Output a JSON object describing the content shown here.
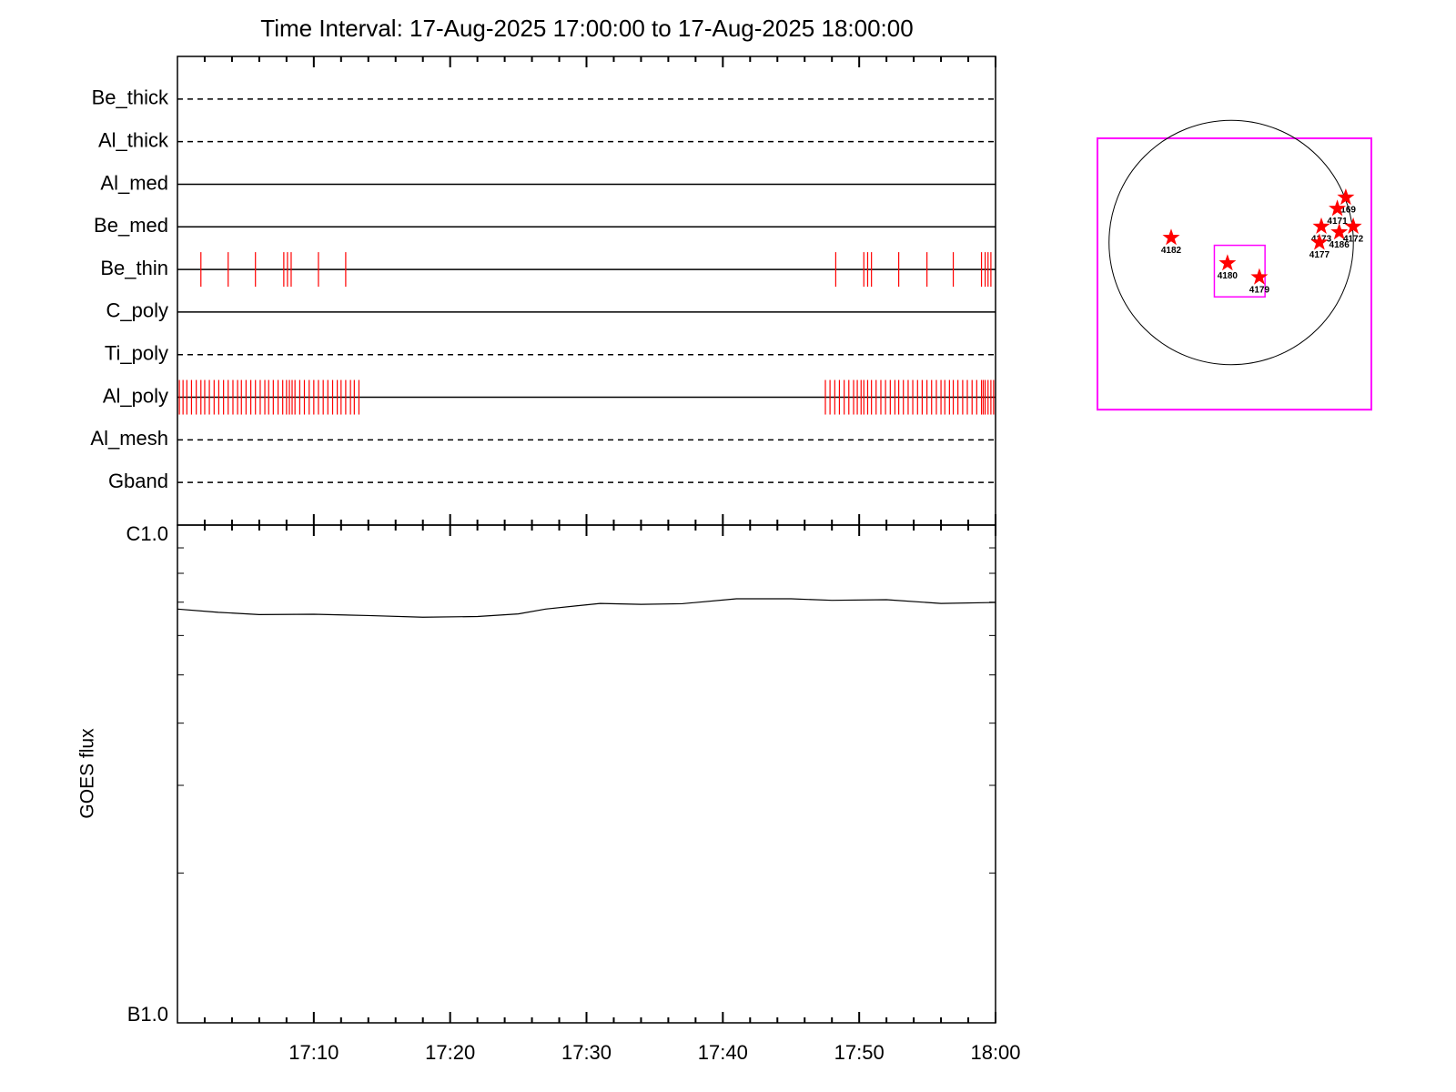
{
  "chart_data": [
    {
      "type": "events",
      "title": "Time Interval: 17-Aug-2025 17:00:00 to 17-Aug-2025 18:00:00",
      "xlim": [
        0,
        60
      ],
      "xticks": [
        10,
        20,
        30,
        40,
        50,
        60
      ],
      "xminorticks": [
        2,
        4,
        6,
        8,
        12,
        14,
        16,
        18,
        22,
        24,
        26,
        28,
        32,
        34,
        36,
        38,
        42,
        44,
        46,
        48,
        52,
        54,
        56,
        58
      ],
      "color": "#ff0000",
      "rows": [
        {
          "name": "Be_thick",
          "line": "dashed",
          "events": []
        },
        {
          "name": "Al_thick",
          "line": "dashed",
          "events": []
        },
        {
          "name": "Al_med",
          "line": "solid",
          "events": []
        },
        {
          "name": "Be_med",
          "line": "solid",
          "events": []
        },
        {
          "name": "Be_thin",
          "line": "solid",
          "events": [
            1.72,
            3.72,
            5.72,
            7.8,
            8.07,
            8.34,
            10.34,
            12.34,
            48.28,
            50.34,
            50.62,
            50.9,
            52.9,
            54.97,
            56.9,
            58.97,
            59.24,
            59.45,
            59.66
          ]
        },
        {
          "name": "C_poly",
          "line": "solid",
          "events": []
        },
        {
          "name": "Ti_poly",
          "line": "dashed",
          "events": []
        },
        {
          "name": "Al_poly",
          "line": "solid",
          "events": [
            0.14,
            0.41,
            0.69,
            1.03,
            1.38,
            1.72,
            2.0,
            2.34,
            2.69,
            3.03,
            3.38,
            3.72,
            4.07,
            4.41,
            4.69,
            5.03,
            5.38,
            5.72,
            6.07,
            6.41,
            6.69,
            7.03,
            7.38,
            7.72,
            8.0,
            8.21,
            8.41,
            8.62,
            8.97,
            9.31,
            9.66,
            10.0,
            10.34,
            10.69,
            11.03,
            11.38,
            11.72,
            12.0,
            12.34,
            12.69,
            12.97,
            13.31,
            47.52,
            47.86,
            48.21,
            48.55,
            48.9,
            49.24,
            49.59,
            49.86,
            50.14,
            50.34,
            50.62,
            50.9,
            51.24,
            51.59,
            51.93,
            52.28,
            52.62,
            52.9,
            53.24,
            53.59,
            53.93,
            54.28,
            54.62,
            54.97,
            55.31,
            55.66,
            56.0,
            56.28,
            56.62,
            56.9,
            57.24,
            57.59,
            57.93,
            58.28,
            58.62,
            58.97,
            59.1,
            59.24,
            59.45,
            59.66,
            59.86
          ]
        },
        {
          "name": "Al_mesh",
          "line": "dashed",
          "events": []
        },
        {
          "name": "Gband",
          "line": "dashed",
          "events": []
        }
      ]
    },
    {
      "type": "line",
      "ylabel": "GOES flux",
      "log": true,
      "color": "#000000",
      "xlim": [
        0,
        60
      ],
      "xticks": [
        {
          "value": 10,
          "label": "17:10"
        },
        {
          "value": 20,
          "label": "17:20"
        },
        {
          "value": 30,
          "label": "17:30"
        },
        {
          "value": 40,
          "label": "17:40"
        },
        {
          "value": 50,
          "label": "17:50"
        },
        {
          "value": 60,
          "label": "18:00"
        }
      ],
      "xminorticks": [
        2,
        4,
        6,
        8,
        12,
        14,
        16,
        18,
        22,
        24,
        26,
        28,
        32,
        34,
        36,
        38,
        42,
        44,
        46,
        48,
        52,
        54,
        56,
        58
      ],
      "ylim": [
        1e-07,
        1e-06
      ],
      "yticks": [
        {
          "value": 1e-06,
          "label": "C1.0"
        },
        {
          "value": 1e-07,
          "label": "B1.0"
        }
      ],
      "yminorticks": [
        2e-07,
        3e-07,
        4e-07,
        5e-07,
        6e-07,
        7e-07,
        8e-07,
        9e-07
      ],
      "x": [
        0,
        3,
        6,
        10,
        14,
        18,
        22,
        25,
        27,
        31,
        34,
        37,
        41,
        45,
        48,
        52,
        56,
        60
      ],
      "values": [
        6.78e-07,
        6.68e-07,
        6.61e-07,
        6.62e-07,
        6.58e-07,
        6.53e-07,
        6.55e-07,
        6.63e-07,
        6.78e-07,
        6.96e-07,
        6.93e-07,
        6.95e-07,
        7.11e-07,
        7.11e-07,
        7.06e-07,
        7.08e-07,
        6.96e-07,
        6.99e-07
      ]
    },
    {
      "type": "map",
      "xlim": [
        -1040,
        1090
      ],
      "ylim": [
        -1300,
        810
      ],
      "frame_color": "#ff00ff",
      "disk_radius": 950,
      "box": {
        "x": [
          -131,
          263
        ],
        "y": [
          -423,
          -22
        ]
      },
      "color": "#ff0000",
      "x": [
        -467,
        -29,
        219,
        891,
        825,
        701,
        840,
        949,
        686
      ],
      "y": [
        37,
        -161,
        -270,
        350,
        263,
        124,
        80,
        124,
        0
      ],
      "labels": [
        "4182",
        "4180",
        "4179",
        "4169",
        "4171",
        "4173",
        "4186",
        "4172",
        "4177"
      ]
    }
  ]
}
